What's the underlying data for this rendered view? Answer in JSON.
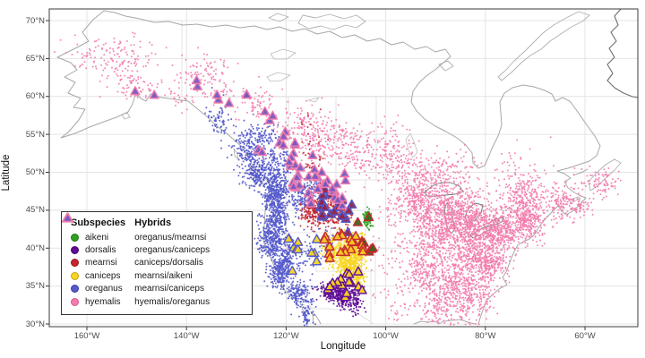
{
  "figure": {
    "xlabel": "Longitude",
    "ylabel": "Latitude"
  },
  "axes": {
    "x_ticks": [
      {
        "label": "160°W",
        "deg_w": 160
      },
      {
        "label": "140°W",
        "deg_w": 140
      },
      {
        "label": "120°W",
        "deg_w": 120
      },
      {
        "label": "100°W",
        "deg_w": 100
      },
      {
        "label": "80°W",
        "deg_w": 80
      },
      {
        "label": "60°W",
        "deg_w": 60
      }
    ],
    "y_ticks": [
      {
        "label": "70°N",
        "deg_n": 70
      },
      {
        "label": "65°N",
        "deg_n": 65
      },
      {
        "label": "60°N",
        "deg_n": 60
      },
      {
        "label": "55°N",
        "deg_n": 55
      },
      {
        "label": "50°N",
        "deg_n": 50
      },
      {
        "label": "45°N",
        "deg_n": 45
      },
      {
        "label": "40°N",
        "deg_n": 40
      },
      {
        "label": "35°N",
        "deg_n": 35
      },
      {
        "label": "30°N",
        "deg_n": 30
      }
    ]
  },
  "legend": {
    "subspecies_title": "Subspecies",
    "hybrids_title": "Hybrids",
    "subspecies": [
      {
        "label": "aikeni",
        "fill": "#2FA01F",
        "edge": "#1F7714"
      },
      {
        "label": "dorsalis",
        "fill": "#5E0C96",
        "edge": "#43086C"
      },
      {
        "label": "mearnsi",
        "fill": "#C4262E",
        "edge": "#94191F"
      },
      {
        "label": "caniceps",
        "fill": "#F8D41F",
        "edge": "#C7A512"
      },
      {
        "label": "oreganus",
        "fill": "#5359CB",
        "edge": "#3A3FA8"
      },
      {
        "label": "hyemalis",
        "fill": "#F27DAE",
        "edge": "#D9538E"
      }
    ],
    "hybrids": [
      {
        "label": "oreganus/mearnsi",
        "fill": "#8F2347",
        "edge": "#5359CB"
      },
      {
        "label": "oreganus/caniceps",
        "fill": "#F8D41F",
        "edge": "#5359CB"
      },
      {
        "label": "caniceps/dorsalis",
        "fill": "#F8D41F",
        "edge": "#5E0C96"
      },
      {
        "label": "mearnsi/aikeni",
        "fill": "#33691E",
        "edge": "#C4262E"
      },
      {
        "label": "mearnsi/caniceps",
        "fill": "#F6C81D",
        "edge": "#C4262E"
      },
      {
        "label": "hyemalis/oreganus",
        "fill": "#7659C0",
        "edge": "#F27DAE"
      }
    ]
  },
  "chart_data": {
    "type": "scatter",
    "title": "",
    "xlabel": "Longitude",
    "ylabel": "Latitude",
    "x_range_deg_west": [
      167.6,
      49.4
    ],
    "y_range_deg_north": [
      29.6,
      71.5
    ],
    "grid": true,
    "legend_position": "inside-lower-left",
    "cluster_format": [
      "lon_deg_west",
      "lat_deg_north",
      "sd_lon",
      "sd_lat",
      "n_points"
    ],
    "series": [
      {
        "name": "hyemalis",
        "marker": "circle",
        "fill": "#F27DAE",
        "edge": "#F27DAE",
        "clusters": [
          [
            153,
            64.8,
            3.8,
            1.8,
            130
          ],
          [
            150,
            61.3,
            2.5,
            1.0,
            50
          ],
          [
            160,
            65.5,
            2.5,
            1.2,
            25
          ],
          [
            136.5,
            62.5,
            3.0,
            1.7,
            110
          ],
          [
            126,
            58.8,
            2.8,
            1.3,
            70
          ],
          [
            117,
            55.8,
            3.2,
            1.7,
            130
          ],
          [
            112,
            54.0,
            2.5,
            1.6,
            120
          ],
          [
            105.5,
            53.0,
            2.8,
            1.7,
            140
          ],
          [
            98.5,
            52.2,
            2.8,
            1.8,
            160
          ],
          [
            90.5,
            49.8,
            3.0,
            1.7,
            170
          ],
          [
            93,
            45.8,
            2.2,
            1.6,
            280
          ],
          [
            87.5,
            44.5,
            2.2,
            1.6,
            300
          ],
          [
            82.5,
            43.8,
            2.2,
            1.4,
            280
          ],
          [
            77,
            42.3,
            2.2,
            1.6,
            380
          ],
          [
            71.5,
            43.8,
            1.8,
            1.5,
            280
          ],
          [
            79.8,
            38.3,
            2.0,
            2.0,
            380
          ],
          [
            84,
            39.8,
            2.2,
            1.8,
            300
          ],
          [
            86.5,
            35.0,
            2.2,
            1.7,
            260
          ],
          [
            92.3,
            37.0,
            2.0,
            1.6,
            180
          ],
          [
            90.5,
            41.3,
            2.2,
            1.6,
            220
          ],
          [
            98.5,
            41.0,
            3.0,
            2.8,
            70
          ],
          [
            72.5,
            46.8,
            2.2,
            1.5,
            200
          ],
          [
            64.5,
            45.8,
            1.8,
            1.2,
            130
          ],
          [
            60.8,
            45.3,
            1.0,
            0.7,
            40
          ],
          [
            56.3,
            48.3,
            1.5,
            1.0,
            60
          ],
          [
            73.5,
            50.5,
            3.0,
            2.2,
            50
          ],
          [
            87.5,
            31.0,
            3.2,
            0.8,
            50
          ],
          [
            82,
            33.3,
            1.8,
            1.4,
            140
          ],
          [
            90,
            32.8,
            1.8,
            1.2,
            70
          ],
          [
            97.5,
            47.3,
            2.2,
            1.7,
            60
          ],
          [
            85,
            48.5,
            2.5,
            1.8,
            80
          ],
          [
            59.5,
            49.3,
            1.5,
            1.0,
            25
          ],
          [
            141,
            60.0,
            1.5,
            1.0,
            25
          ],
          [
            105,
            40,
            0.6,
            1.0,
            18
          ],
          [
            97,
            32.5,
            2.0,
            1.5,
            40
          ]
        ]
      },
      {
        "name": "oreganus",
        "marker": "circle",
        "fill": "#5359CB",
        "edge": "#5359CB",
        "clusters": [
          [
            133.5,
            57.0,
            1.2,
            1.3,
            70
          ],
          [
            127.5,
            53.0,
            1.6,
            1.6,
            180
          ],
          [
            125.5,
            49.6,
            1.4,
            0.9,
            160
          ],
          [
            121.5,
            50.8,
            1.6,
            1.3,
            160
          ],
          [
            121.8,
            47.5,
            1.3,
            1.1,
            260
          ],
          [
            122.3,
            44.3,
            1.2,
            1.4,
            260
          ],
          [
            122.8,
            40.8,
            1.4,
            1.3,
            260
          ],
          [
            120.2,
            38.3,
            0.9,
            1.3,
            170
          ],
          [
            121.7,
            36.8,
            0.9,
            1.0,
            130
          ],
          [
            117.6,
            34.0,
            1.4,
            0.8,
            150
          ],
          [
            115.9,
            31.2,
            0.7,
            0.9,
            60
          ],
          [
            117.2,
            46.6,
            1.8,
            1.3,
            170
          ],
          [
            116.0,
            39.6,
            2.2,
            1.8,
            70
          ],
          [
            124.5,
            54.5,
            1.5,
            1.2,
            90
          ],
          [
            113.8,
            47.8,
            1.0,
            1.0,
            50
          ],
          [
            111.6,
            40.3,
            0.7,
            1.0,
            40
          ]
        ]
      },
      {
        "name": "caniceps",
        "marker": "circle",
        "fill": "#F8D41F",
        "edge": "#C7A512",
        "clusters": [
          [
            106.6,
            39.2,
            1.2,
            1.2,
            330
          ],
          [
            106.6,
            41.0,
            1.1,
            0.7,
            100
          ],
          [
            110.3,
            39.6,
            1.2,
            1.1,
            150
          ],
          [
            105.7,
            36.3,
            0.9,
            0.8,
            110
          ],
          [
            108,
            37.5,
            0.9,
            0.8,
            110
          ]
        ]
      },
      {
        "name": "dorsalis",
        "marker": "circle",
        "fill": "#5E0C96",
        "edge": "#43086C",
        "clusters": [
          [
            111.3,
            34.4,
            1.1,
            0.6,
            130
          ],
          [
            108.4,
            33.5,
            1.2,
            0.8,
            130
          ],
          [
            106.1,
            33.2,
            0.8,
            1.0,
            70
          ],
          [
            109.8,
            34.0,
            0.8,
            0.5,
            60
          ]
        ]
      },
      {
        "name": "mearnsi",
        "marker": "circle",
        "fill": "#C4262E",
        "edge": "#94191F",
        "clusters": [
          [
            114.5,
            44.8,
            1.2,
            1.1,
            170
          ],
          [
            112.3,
            46.0,
            1.3,
            1.0,
            110
          ],
          [
            110.2,
            44.2,
            1.1,
            0.9,
            90
          ],
          [
            114.3,
            50.5,
            1.2,
            1.6,
            30
          ],
          [
            115.5,
            54.5,
            1.8,
            2.2,
            18
          ],
          [
            107.5,
            44.5,
            0.6,
            0.6,
            25
          ]
        ]
      },
      {
        "name": "aikeni",
        "marker": "circle",
        "fill": "#2FA01F",
        "edge": "#1F7714",
        "clusters": [
          [
            103.7,
            44.0,
            0.4,
            0.55,
            70
          ],
          [
            103.4,
            42.8,
            0.3,
            0.4,
            12
          ]
        ]
      },
      {
        "name": "oreganus/mearnsi",
        "marker": "triangle",
        "fill": "#8F2347",
        "edge": "#5359CB",
        "clusters": [
          [
            112.8,
            45.8,
            1.0,
            0.8,
            6
          ],
          [
            110.6,
            44.6,
            0.8,
            0.6,
            4
          ],
          [
            111.5,
            47.0,
            0.8,
            0.6,
            4
          ],
          [
            108.3,
            44.3,
            0.7,
            0.5,
            3
          ],
          [
            106.8,
            45.3,
            0.4,
            0.4,
            2
          ],
          [
            109.6,
            46.4,
            0.5,
            0.4,
            2
          ],
          [
            107.2,
            42.5,
            0.3,
            0.3,
            1
          ]
        ]
      },
      {
        "name": "oreganus/caniceps",
        "marker": "triangle",
        "fill": "#F8D41F",
        "edge": "#5359CB",
        "clusters": [
          [
            117.4,
            39.5,
            0.9,
            0.7,
            4
          ],
          [
            114.6,
            38.5,
            0.7,
            0.6,
            3
          ],
          [
            118.9,
            40.9,
            0.5,
            0.4,
            2
          ],
          [
            113.2,
            41.6,
            0.4,
            0.4,
            1
          ],
          [
            119.3,
            37.2,
            0.3,
            0.3,
            1
          ]
        ]
      },
      {
        "name": "caniceps/dorsalis",
        "marker": "triangle",
        "fill": "#F8D41F",
        "edge": "#5E0C96",
        "clusters": [
          [
            107.1,
            36.5,
            1.0,
            0.7,
            5
          ],
          [
            109.6,
            35.4,
            0.8,
            0.5,
            3
          ],
          [
            111.8,
            34.7,
            0.6,
            0.4,
            3
          ],
          [
            105.6,
            34.9,
            0.5,
            0.5,
            2
          ],
          [
            108.2,
            33.9,
            0.4,
            0.4,
            2
          ]
        ]
      },
      {
        "name": "mearnsi/aikeni",
        "marker": "triangle",
        "fill": "#33691E",
        "edge": "#C4262E",
        "clusters": [
          [
            103.9,
            41.0,
            0.7,
            0.7,
            3
          ],
          [
            102.9,
            39.8,
            0.5,
            0.4,
            2
          ],
          [
            105.3,
            43.4,
            0.3,
            0.3,
            1
          ],
          [
            103.5,
            44.5,
            0.3,
            0.3,
            1
          ]
        ]
      },
      {
        "name": "mearnsi/caniceps",
        "marker": "triangle",
        "fill": "#F6C81D",
        "edge": "#C4262E",
        "clusters": [
          [
            108.3,
            41.6,
            1.2,
            0.7,
            6
          ],
          [
            106.2,
            40.3,
            0.8,
            0.6,
            4
          ],
          [
            110.8,
            40.1,
            0.8,
            0.6,
            3
          ],
          [
            104.9,
            39.2,
            0.5,
            0.5,
            2
          ],
          [
            108.9,
            38.9,
            0.5,
            0.4,
            2
          ],
          [
            112.3,
            41.8,
            0.4,
            0.4,
            2
          ]
        ]
      },
      {
        "name": "hyemalis/oreganus",
        "marker": "triangle",
        "fill": "#7659C0",
        "edge": "#F27DAE",
        "clusters": [
          [
            150.2,
            60.9,
            0.3,
            0.3,
            1
          ],
          [
            146.3,
            60.7,
            0.3,
            0.3,
            1
          ],
          [
            138,
            61.5,
            0.5,
            0.4,
            2
          ],
          [
            133.5,
            60.3,
            0.4,
            0.3,
            2
          ],
          [
            131.5,
            59.2,
            0.4,
            0.3,
            1
          ],
          [
            128,
            60,
            0.5,
            0.4,
            2
          ],
          [
            124,
            57.5,
            0.8,
            0.6,
            2
          ],
          [
            123.3,
            57.3,
            0.4,
            0.3,
            1
          ],
          [
            121.5,
            54.5,
            0.8,
            0.6,
            3
          ],
          [
            125,
            52.5,
            0.6,
            0.5,
            2
          ],
          [
            119.5,
            52.5,
            1.2,
            1.0,
            6
          ],
          [
            116.5,
            50.5,
            1.3,
            1.0,
            8
          ],
          [
            113.5,
            48.8,
            1.3,
            0.9,
            8
          ],
          [
            111,
            47.2,
            1.2,
            0.8,
            6
          ],
          [
            118.5,
            48.5,
            0.8,
            0.7,
            4
          ],
          [
            109,
            45.5,
            0.8,
            0.7,
            3
          ],
          [
            114.8,
            46.2,
            0.7,
            0.6,
            3
          ],
          [
            108.3,
            49.3,
            0.5,
            0.4,
            2
          ]
        ]
      }
    ]
  }
}
